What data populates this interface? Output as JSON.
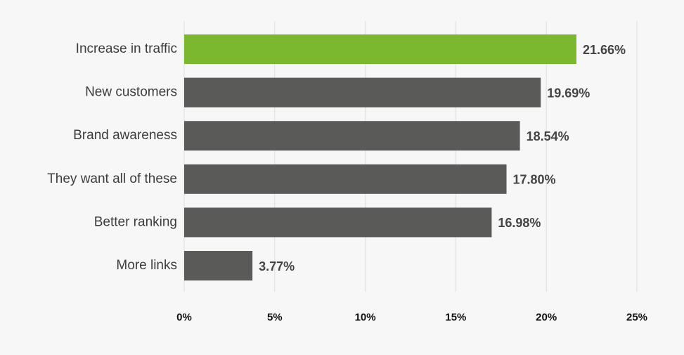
{
  "chart_data": {
    "type": "bar",
    "orientation": "horizontal",
    "categories": [
      "Increase in traffic",
      "New customers",
      "Brand awareness",
      "They want all of these",
      "Better ranking",
      "More links"
    ],
    "values": [
      21.66,
      19.69,
      18.54,
      17.8,
      16.98,
      3.77
    ],
    "value_labels": [
      "21.66%",
      "19.69%",
      "18.54%",
      "17.80%",
      "16.98%",
      "3.77%"
    ],
    "x_ticks": [
      0,
      5,
      10,
      15,
      20,
      25
    ],
    "x_tick_labels": [
      "0%",
      "5%",
      "10%",
      "15%",
      "20%",
      "25%"
    ],
    "xlim": [
      0,
      25
    ],
    "grid": true,
    "legend": "none",
    "colors": {
      "highlight": "#7cb82f",
      "default": "#5a5a58",
      "background": "#f7f7f7",
      "grid": "#dddddd"
    },
    "highlight_index": 0
  }
}
